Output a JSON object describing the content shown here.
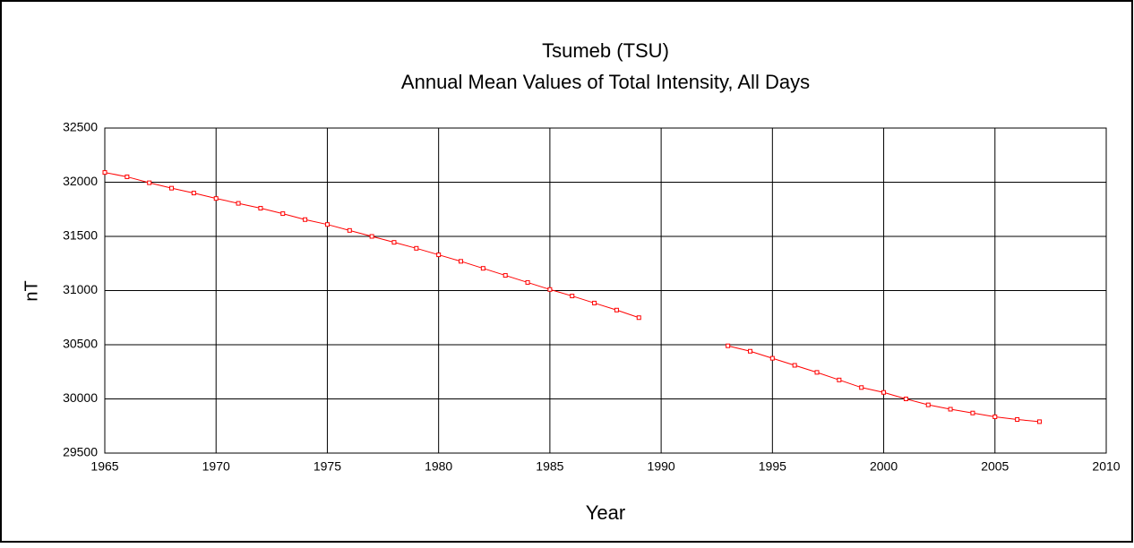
{
  "chart_data": {
    "type": "line",
    "title": "Tsumeb (TSU)",
    "subtitle": "Annual Mean Values of Total Intensity, All Days",
    "x_label": "Year",
    "y_label": "nT",
    "x": [
      1965,
      1966,
      1967,
      1968,
      1969,
      1970,
      1971,
      1972,
      1973,
      1974,
      1975,
      1976,
      1977,
      1978,
      1979,
      1980,
      1981,
      1982,
      1983,
      1984,
      1985,
      1986,
      1987,
      1988,
      1989,
      1990,
      1991,
      1992,
      1993,
      1994,
      1995,
      1996,
      1997,
      1998,
      1999,
      2000,
      2001,
      2002,
      2003,
      2004,
      2005,
      2006,
      2007
    ],
    "series": [
      {
        "name": "Total Intensity",
        "color": "#ff0000",
        "values": [
          32090,
          32050,
          31995,
          31945,
          31900,
          31850,
          31805,
          31760,
          31710,
          31655,
          31610,
          31555,
          31500,
          31445,
          31390,
          31330,
          31270,
          31205,
          31140,
          31075,
          31010,
          30950,
          30885,
          30820,
          30750,
          null,
          null,
          null,
          30490,
          30440,
          30375,
          30310,
          30245,
          30175,
          30105,
          30060,
          30000,
          29945,
          29905,
          29870,
          29835,
          29810,
          29790
        ]
      }
    ],
    "xlim": [
      1965,
      2010
    ],
    "xticks": [
      1965,
      1970,
      1975,
      1980,
      1985,
      1990,
      1995,
      2000,
      2005,
      2010
    ],
    "ylim": [
      29500,
      32500
    ],
    "yticks": [
      29500,
      30000,
      30500,
      31000,
      31500,
      32000,
      32500
    ],
    "grid": true
  }
}
